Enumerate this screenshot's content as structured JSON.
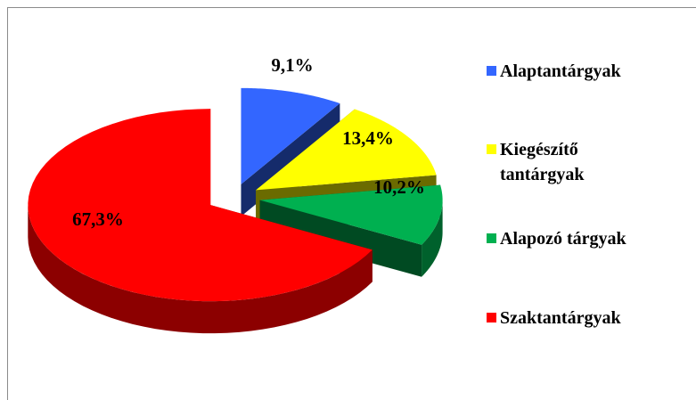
{
  "chart_data": {
    "type": "pie",
    "categories": [
      "Alaptantárgyak",
      "Kiegészítő tantárgyak",
      "Alapozó tárgyak",
      "Szaktantárgyak"
    ],
    "values": [
      9.1,
      13.4,
      10.2,
      67.3
    ],
    "value_labels": [
      "9,1%",
      "13,4%",
      "10,2%",
      "67,3%"
    ],
    "colors": [
      "#3366ff",
      "#ffff00",
      "#00b050",
      "#ff0000"
    ],
    "legend": "right"
  }
}
